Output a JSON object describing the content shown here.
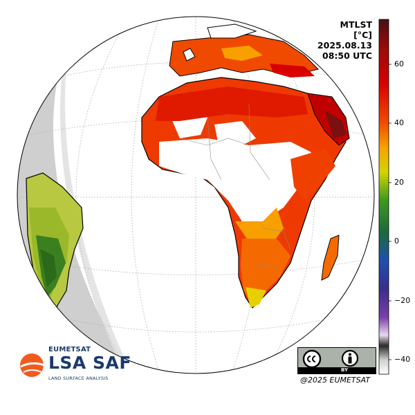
{
  "product": "MTLST",
  "unit": "[°C]",
  "date": "2025.08.13",
  "time": "08:50 UTC",
  "colorbar": {
    "ticks": [
      "60",
      "40",
      "20",
      "0",
      "−20",
      "−40"
    ],
    "range": [
      -45,
      75
    ],
    "colors": [
      "#ffffff",
      "#3a3a3a",
      "#d8c4e0",
      "#7b3fa8",
      "#3a2d8a",
      "#1f4fb0",
      "#2a8a3a",
      "#d4d400",
      "#f7a000",
      "#ee3a00",
      "#c80000",
      "#5a1010"
    ]
  },
  "logo": {
    "org": "EUMETSAT",
    "name": "LSA SAF",
    "subtitle": "LAND SURFACE ANALYSIS"
  },
  "license": {
    "badge": "BY"
  },
  "copyright": "@2025 EUMETSAT",
  "colors": {
    "hot": "#ee2a00",
    "very_hot": "#b00000",
    "warm": "#f5a000",
    "cool": "#a8c820",
    "green": "#2a7a20",
    "night_shade": "#cfcfcf",
    "logo_orange": "#ef5b1f",
    "logo_blue": "#1b3a6b"
  }
}
